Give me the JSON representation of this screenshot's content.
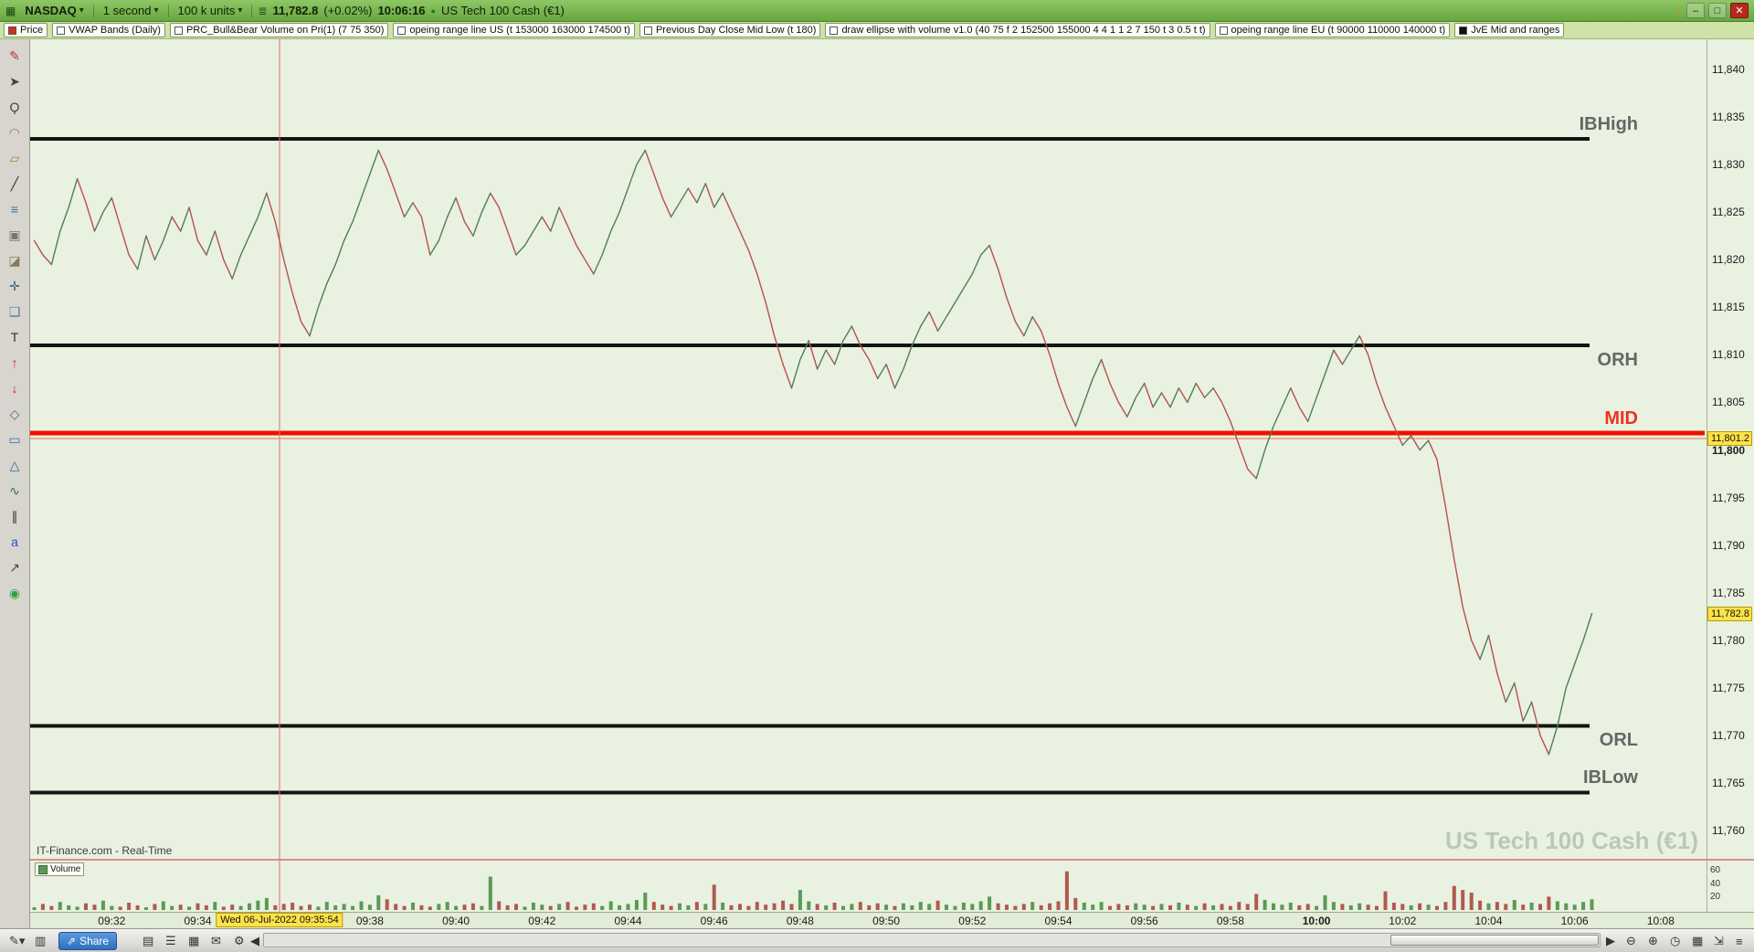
{
  "ui": {
    "title_bar": {
      "app_icon": "▦",
      "symbol": "NASDAQ",
      "timeframe": "1 second",
      "units": "100 k units",
      "quote_icon": "≣",
      "last_price": "11,782.8",
      "change": "(+0.02%)",
      "last_time": "10:06:16",
      "bullet": "●",
      "instrument": "US Tech 100 Cash (€1)"
    },
    "window_controls": {
      "lightning": "⚡",
      "minimize": "–",
      "maximize": "□",
      "close": "✕"
    },
    "indicator_bar": {
      "items": [
        {
          "label": "Price",
          "box": "#d03020"
        },
        {
          "label": "VWAP Bands (Daily)",
          "box": "#ffffff"
        },
        {
          "label": "PRC_Bull&Bear Volume on Pri(1) (7 75 350)",
          "box": "#ffffff"
        },
        {
          "label": "opeing range line US (t 153000 163000 174500 t)",
          "box": "#ffffff"
        },
        {
          "label": "Previous Day Close  Mid  Low (t 180)",
          "box": "#ffffff"
        },
        {
          "label": "draw ellipse with volume v1.0 (40 75 f 2 152500 155000 4 4 1 1 2 7 150 t 3 0.5 t t)",
          "box": "#ffffff"
        },
        {
          "label": "opeing range line EU (t 90000 110000 140000 t)",
          "box": "#ffffff"
        },
        {
          "label": "JvE Mid and ranges",
          "box": "#111111"
        }
      ]
    },
    "left_toolbar": {
      "tools": [
        {
          "name": "pen-tool-icon",
          "glyph": "✎",
          "color": "#c03030"
        },
        {
          "name": "cursor-tool-icon",
          "glyph": "➤",
          "color": "#444444"
        },
        {
          "name": "zoom-tool-icon",
          "glyph": "Ϙ",
          "color": "#444444"
        },
        {
          "name": "lasso-tool-icon",
          "glyph": "◠",
          "color": "#b07030"
        },
        {
          "name": "ruler-tool-icon",
          "glyph": "▱",
          "color": "#a08820"
        },
        {
          "name": "trendline-tool-icon",
          "glyph": "╱",
          "color": "#333333"
        },
        {
          "name": "fibonacci-tool-icon",
          "glyph": "≡",
          "color": "#3a6ea8"
        },
        {
          "name": "delete-drawing-tool-icon",
          "glyph": "▣",
          "color": "#777777"
        },
        {
          "name": "eraser-tool-icon",
          "glyph": "◪",
          "color": "#8a7a5a"
        },
        {
          "name": "move-tool-icon",
          "glyph": "✛",
          "color": "#446688"
        },
        {
          "name": "duplicate-tool-icon",
          "glyph": "❏",
          "color": "#557799"
        },
        {
          "name": "text-tool-icon",
          "glyph": "T",
          "color": "#223355"
        },
        {
          "name": "arrow-up-tool-icon",
          "glyph": "↑",
          "color": "#cc2020"
        },
        {
          "name": "arrow-down-tool-icon",
          "glyph": "↓",
          "color": "#cc2020"
        },
        {
          "name": "polygon-tool-icon",
          "glyph": "◇",
          "color": "#356a9a"
        },
        {
          "name": "rectangle-tool-icon",
          "glyph": "▭",
          "color": "#356a9a"
        },
        {
          "name": "triangle-tool-icon",
          "glyph": "△",
          "color": "#356a9a"
        },
        {
          "name": "zigzag-tool-icon",
          "glyph": "∿",
          "color": "#2a7a3a"
        },
        {
          "name": "channel-tool-icon",
          "glyph": "∥",
          "color": "#333333"
        },
        {
          "name": "annotation-tool-icon",
          "glyph": "a",
          "color": "#2255cc"
        },
        {
          "name": "arrow-ne-tool-icon",
          "glyph": "↗",
          "color": "#444444"
        },
        {
          "name": "colors-tool-icon",
          "glyph": "◉",
          "color": "#30a040"
        }
      ]
    },
    "chart": {
      "provider": "IT-Finance.com - Real-Time",
      "watermark": "US Tech 100 Cash (€1)",
      "volume_legend": "Volume"
    },
    "bottom_toolbar": {
      "share_label": "Share",
      "share_icon": "⇗",
      "left_tools": [
        {
          "name": "draw-tool-button",
          "glyph": "✎▾"
        },
        {
          "name": "chart-type-button",
          "glyph": "▥"
        }
      ],
      "mid_tools": [
        {
          "name": "workspace-button",
          "glyph": "▤"
        },
        {
          "name": "list-button",
          "glyph": "☰"
        },
        {
          "name": "grid-button",
          "glyph": "▦"
        },
        {
          "name": "news-button",
          "glyph": "✉"
        },
        {
          "name": "settings-button",
          "glyph": "⚙"
        }
      ],
      "nav_left": "◀",
      "nav_right": "▶",
      "right_tools": [
        {
          "name": "zoom-out-button",
          "glyph": "⊖"
        },
        {
          "name": "zoom-in-button",
          "glyph": "⊕"
        },
        {
          "name": "time-range-button",
          "glyph": "◷"
        },
        {
          "name": "calendar-button",
          "glyph": "▦"
        },
        {
          "name": "fullscreen-button",
          "glyph": "⇲"
        },
        {
          "name": "menu-button",
          "glyph": "≡"
        }
      ]
    }
  },
  "chart_data": {
    "type": "line",
    "title": "US Tech 100 Cash (€1), 1 second",
    "x_unit": "minutes after 09:30",
    "t_start": 0.2,
    "t_step": 0.2,
    "ylim": [
      11758,
      11842
    ],
    "prices": [
      11822,
      11820.5,
      11819.5,
      11823,
      11825.5,
      11828.5,
      11826,
      11823,
      11825,
      11826.5,
      11823.5,
      11820.5,
      11819,
      11822.5,
      11820,
      11822,
      11824.5,
      11823,
      11825.5,
      11822,
      11820.5,
      11823,
      11820,
      11818,
      11820.5,
      11822.5,
      11824.5,
      11827,
      11824,
      11820,
      11816.5,
      11813.5,
      11812,
      11815,
      11817.5,
      11819.5,
      11822,
      11824,
      11826.5,
      11829,
      11831.5,
      11829.5,
      11827,
      11824.5,
      11826,
      11824.5,
      11820.5,
      11822,
      11824.5,
      11826.5,
      11824,
      11822.5,
      11825,
      11827,
      11825.5,
      11823,
      11820.5,
      11821.5,
      11823,
      11824.5,
      11823,
      11825.5,
      11823.5,
      11821.5,
      11820,
      11818.5,
      11820.5,
      11823,
      11825,
      11827.5,
      11830,
      11831.5,
      11829,
      11826.5,
      11824.5,
      11826,
      11827.5,
      11826,
      11828,
      11825.5,
      11827,
      11825,
      11823,
      11821,
      11818.5,
      11815.5,
      11812,
      11809,
      11806.5,
      11809.5,
      11811.5,
      11808.5,
      11810.5,
      11809,
      11811.5,
      11813,
      11811,
      11809.5,
      11807.5,
      11809,
      11806.5,
      11808.5,
      11811,
      11813,
      11814.5,
      11812.5,
      11814,
      11815.5,
      11817,
      11818.5,
      11820.5,
      11821.5,
      11819,
      11816,
      11813.5,
      11812,
      11814,
      11812.5,
      11810,
      11807,
      11804.5,
      11802.5,
      11805,
      11807.5,
      11809.5,
      11807,
      11805,
      11803.5,
      11805.5,
      11807,
      11804.5,
      11806,
      11804.5,
      11806.5,
      11805,
      11807,
      11805.5,
      11806.5,
      11805,
      11803,
      11800.5,
      11798,
      11797,
      11800,
      11802.5,
      11804.5,
      11806.5,
      11804.5,
      11803,
      11805.5,
      11808,
      11810.5,
      11809,
      11810.5,
      11812,
      11810,
      11807,
      11804.5,
      11802.5,
      11800.5,
      11801.5,
      11800,
      11801,
      11799,
      11794,
      11788.5,
      11783.5,
      11780,
      11778,
      11780.5,
      11776.5,
      11773.5,
      11775.5,
      11771.5,
      11773.5,
      11770,
      11768,
      11771,
      11775,
      11777.5,
      11780,
      11782.8
    ],
    "volumes": [
      4,
      9,
      6,
      12,
      7,
      5,
      10,
      8,
      14,
      6,
      5,
      11,
      7,
      4,
      9,
      13,
      6,
      8,
      5,
      10,
      7,
      12,
      5,
      8,
      6,
      10,
      14,
      18,
      7,
      9,
      11,
      6,
      8,
      5,
      12,
      7,
      9,
      6,
      13,
      8,
      22,
      16,
      9,
      6,
      11,
      7,
      5,
      9,
      12,
      6,
      8,
      10,
      6,
      50,
      13,
      7,
      9,
      5,
      11,
      8,
      6,
      9,
      12,
      5,
      8,
      10,
      6,
      13,
      7,
      9,
      15,
      26,
      12,
      8,
      6,
      10,
      7,
      12,
      9,
      38,
      11,
      7,
      9,
      6,
      12,
      8,
      10,
      14,
      9,
      30,
      13,
      9,
      7,
      11,
      6,
      9,
      12,
      7,
      10,
      8,
      6,
      10,
      7,
      12,
      9,
      14,
      8,
      6,
      11,
      9,
      13,
      20,
      10,
      8,
      6,
      9,
      12,
      7,
      10,
      13,
      58,
      18,
      11,
      8,
      12,
      6,
      9,
      7,
      10,
      8,
      6,
      9,
      7,
      11,
      8,
      6,
      10,
      7,
      9,
      6,
      12,
      9,
      24,
      15,
      10,
      8,
      11,
      7,
      9,
      6,
      22,
      12,
      9,
      7,
      10,
      8,
      6,
      28,
      11,
      9,
      7,
      10,
      8,
      6,
      12,
      36,
      30,
      26,
      14,
      10,
      12,
      9,
      15,
      8,
      11,
      9,
      20,
      13,
      10,
      8,
      12,
      16
    ],
    "y_ticks": [
      {
        "v": 11840,
        "label": "11,840"
      },
      {
        "v": 11835,
        "label": "11,835"
      },
      {
        "v": 11830,
        "label": "11,830"
      },
      {
        "v": 11825,
        "label": "11,825"
      },
      {
        "v": 11820,
        "label": "11,820"
      },
      {
        "v": 11815,
        "label": "11,815"
      },
      {
        "v": 11810,
        "label": "11,810"
      },
      {
        "v": 11805,
        "label": "11,805"
      },
      {
        "v": 11800,
        "label": "11,800",
        "bold": true
      },
      {
        "v": 11795,
        "label": "11,795"
      },
      {
        "v": 11790,
        "label": "11,790"
      },
      {
        "v": 11785,
        "label": "11,785"
      },
      {
        "v": 11780,
        "label": "11,780"
      },
      {
        "v": 11775,
        "label": "11,775"
      },
      {
        "v": 11770,
        "label": "11,770"
      },
      {
        "v": 11765,
        "label": "11,765"
      },
      {
        "v": 11760,
        "label": "11,760"
      }
    ],
    "x_ticks": [
      {
        "t": 2,
        "label": "09:32"
      },
      {
        "t": 4,
        "label": "09:34"
      },
      {
        "t": 8,
        "label": "09:38"
      },
      {
        "t": 10,
        "label": "09:40"
      },
      {
        "t": 12,
        "label": "09:42"
      },
      {
        "t": 14,
        "label": "09:44"
      },
      {
        "t": 16,
        "label": "09:46"
      },
      {
        "t": 18,
        "label": "09:48"
      },
      {
        "t": 20,
        "label": "09:50"
      },
      {
        "t": 22,
        "label": "09:52"
      },
      {
        "t": 24,
        "label": "09:54"
      },
      {
        "t": 26,
        "label": "09:56"
      },
      {
        "t": 28,
        "label": "09:58"
      },
      {
        "t": 30,
        "label": "10:00",
        "bold": true
      },
      {
        "t": 32,
        "label": "10:02"
      },
      {
        "t": 34,
        "label": "10:04"
      },
      {
        "t": 36,
        "label": "10:06"
      },
      {
        "t": 38,
        "label": "10:08"
      }
    ],
    "levels": [
      {
        "name": "IBHigh",
        "label": "IBHigh",
        "price": 11832.7,
        "color": "#141414",
        "label_color": "#4f4f4f",
        "width": 4,
        "x_end": 1740,
        "label_pos": "above"
      },
      {
        "name": "ORH",
        "label": "ORH",
        "price": 11811,
        "color": "#141414",
        "label_color": "#4f4f4f",
        "width": 4,
        "x_end": 1740,
        "label_pos": "below"
      },
      {
        "name": "MID",
        "label": "MID",
        "price": 11801.8,
        "color": "#ee1100",
        "label_color": "#ee1100",
        "width": 5,
        "x_end": 1866,
        "label_pos": "above"
      },
      {
        "name": "ORL",
        "label": "ORL",
        "price": 11771,
        "color": "#141414",
        "label_color": "#4f4f4f",
        "width": 4,
        "x_end": 1740,
        "label_pos": "below"
      },
      {
        "name": "IBLow",
        "label": "IBLow",
        "price": 11764,
        "color": "#141414",
        "label_color": "#4f4f4f",
        "width": 4,
        "x_end": 1740,
        "label_pos": "above"
      }
    ],
    "reference_line": {
      "price": 11801.2,
      "color": "#e07a40"
    },
    "price_badges": [
      {
        "v": 11801.2,
        "label": "11,801.2"
      },
      {
        "v": 11782.8,
        "label": "11,782.8"
      }
    ],
    "crosshair": {
      "t": 5.9,
      "label": "Wed 06-Jul-2022 09:35:54"
    },
    "volume_axis_labels": [
      {
        "v": 60,
        "label": "60"
      },
      {
        "v": 40,
        "label": "40"
      },
      {
        "v": 20,
        "label": "20"
      }
    ],
    "colors": {
      "up": "#4e8052",
      "down": "#b5524a",
      "vol_up": "#5a9a55",
      "vol_down": "#b05a50",
      "crosshair": "#e07070"
    }
  }
}
